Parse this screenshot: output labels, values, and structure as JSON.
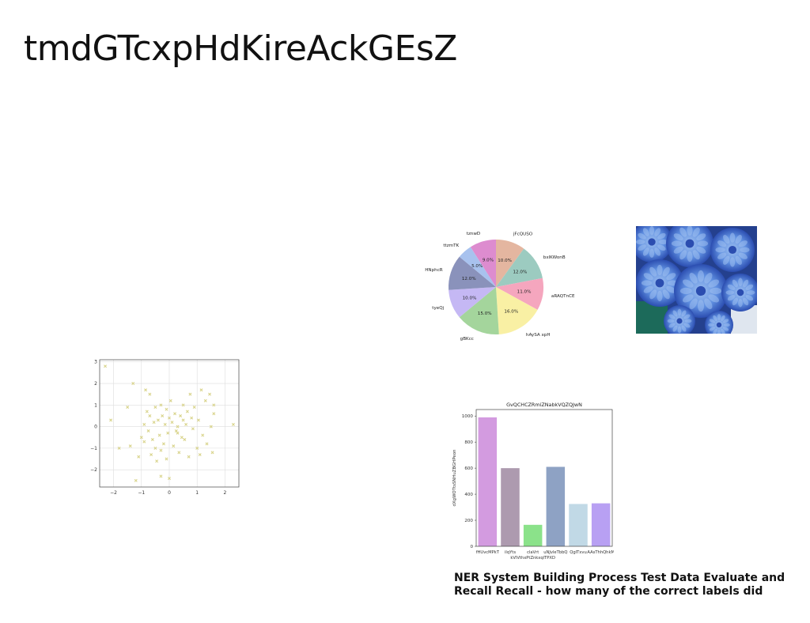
{
  "slide": {
    "title": "tmdGTcxpHdKireAckGEsZ",
    "caption": "NER System Building Process Test Data Evaluate and Recall Recall - how many of the correct labels did"
  },
  "chart_data": [
    {
      "id": "scatter",
      "type": "scatter",
      "title": "",
      "xlabel": "",
      "ylabel": "",
      "xlim": [
        -2.5,
        2.5
      ],
      "ylim": [
        -2.8,
        3.1
      ],
      "xticks": [
        -2,
        -1,
        0,
        1,
        2
      ],
      "yticks": [
        -2,
        -1,
        0,
        1,
        2,
        3
      ],
      "grid": true,
      "color": "#d9d48c",
      "marker": "x",
      "points": [
        [
          -2.3,
          2.8
        ],
        [
          -2.1,
          0.3
        ],
        [
          -1.5,
          0.9
        ],
        [
          -1.4,
          -0.9
        ],
        [
          -1.3,
          2.0
        ],
        [
          -1.2,
          -2.5
        ],
        [
          -1.1,
          -1.4
        ],
        [
          -1.0,
          -0.5
        ],
        [
          -0.9,
          -0.7
        ],
        [
          -0.85,
          1.7
        ],
        [
          -0.8,
          0.7
        ],
        [
          -0.75,
          -0.2
        ],
        [
          -0.7,
          1.5
        ],
        [
          -0.7,
          0.5
        ],
        [
          -0.65,
          -1.3
        ],
        [
          -0.6,
          -0.6
        ],
        [
          -0.55,
          0.2
        ],
        [
          -0.5,
          0.9
        ],
        [
          -0.5,
          -1.0
        ],
        [
          -0.45,
          -1.6
        ],
        [
          -0.4,
          0.3
        ],
        [
          -0.35,
          -0.4
        ],
        [
          -0.3,
          1.0
        ],
        [
          -0.3,
          -2.3
        ],
        [
          -0.25,
          0.5
        ],
        [
          -0.2,
          -0.8
        ],
        [
          -0.15,
          0.1
        ],
        [
          -0.1,
          0.8
        ],
        [
          -0.1,
          -1.5
        ],
        [
          -0.05,
          -0.3
        ],
        [
          0.0,
          0.4
        ],
        [
          0.0,
          -2.4
        ],
        [
          0.05,
          1.2
        ],
        [
          0.1,
          0.2
        ],
        [
          0.15,
          -0.9
        ],
        [
          0.2,
          0.6
        ],
        [
          0.25,
          -0.2
        ],
        [
          0.3,
          0.0
        ],
        [
          0.35,
          -1.2
        ],
        [
          0.4,
          0.5
        ],
        [
          0.45,
          -0.5
        ],
        [
          0.5,
          0.3
        ],
        [
          0.55,
          -0.6
        ],
        [
          0.6,
          0.1
        ],
        [
          0.65,
          0.7
        ],
        [
          0.7,
          -1.4
        ],
        [
          0.75,
          1.5
        ],
        [
          0.8,
          0.4
        ],
        [
          0.85,
          -0.1
        ],
        [
          0.9,
          0.9
        ],
        [
          1.0,
          -1.0
        ],
        [
          1.05,
          0.3
        ],
        [
          1.1,
          -1.3
        ],
        [
          1.15,
          1.7
        ],
        [
          1.2,
          -0.4
        ],
        [
          1.3,
          1.2
        ],
        [
          1.35,
          -0.8
        ],
        [
          1.45,
          1.5
        ],
        [
          1.5,
          0.0
        ],
        [
          1.55,
          -1.2
        ],
        [
          1.6,
          1.0
        ],
        [
          1.6,
          0.6
        ],
        [
          2.3,
          0.1
        ],
        [
          -1.8,
          -1.0
        ],
        [
          -0.3,
          -1.1
        ],
        [
          0.3,
          -0.3
        ],
        [
          0.5,
          1.0
        ],
        [
          -0.9,
          0.1
        ]
      ]
    },
    {
      "id": "pie",
      "type": "pie",
      "title": "",
      "slices": [
        {
          "label": "jFcQUSO",
          "value": 10.0,
          "pct": "10.0%",
          "color": "#e4b6a0"
        },
        {
          "label": "bxlKWonB",
          "value": 12.0,
          "pct": "12.0%",
          "color": "#9ccbc0"
        },
        {
          "label": "aRAQTnCE",
          "value": 11.0,
          "pct": "11.0%",
          "color": "#f5a6be"
        },
        {
          "label": "hAySA xpH",
          "value": 16.0,
          "pct": "16.0%",
          "color": "#f9f0a4"
        },
        {
          "label": "gBKcc",
          "value": 15.0,
          "pct": "15.0%",
          "color": "#a4d59c"
        },
        {
          "label": "tyeQj",
          "value": 10.0,
          "pct": "10.0%",
          "color": "#c5b8f4"
        },
        {
          "label": "HNphcR",
          "value": 12.0,
          "pct": "12.0%",
          "color": "#8a92bb"
        },
        {
          "label": "ttzmTK",
          "value": 5.0,
          "pct": "5.0%",
          "color": "#a8c2ee"
        },
        {
          "label": "tznwD",
          "value": 9.0,
          "pct": "9.0%",
          "color": "#dd8ccf"
        }
      ]
    },
    {
      "id": "bar",
      "type": "bar",
      "title": "GvQCHCZRmiZNabkVQZQJwN",
      "xlabel": "",
      "ylabel": "dXgWOTtsSNHuZBGHPeon",
      "ylim": [
        0,
        1050
      ],
      "yticks": [
        0,
        200,
        400,
        600,
        800,
        1000
      ],
      "categories": [
        "fHUvcMPkT",
        "ilqYts",
        "claVrt\nkVlVthxPtZnkxqlTPXD",
        "uNJvleTbbQ",
        "QgITxvu",
        "AAsThhQhkM"
      ],
      "values": [
        990,
        600,
        165,
        610,
        325,
        330
      ],
      "colors": [
        "#d39be0",
        "#ad9aaf",
        "#8be28a",
        "#8ea2c4",
        "#c1d9e6",
        "#b8a0f3"
      ]
    }
  ],
  "photo": {
    "subject": "blue dahlia flowers",
    "colors": [
      "#2b4db0",
      "#5f8fe0",
      "#9fc0f0",
      "#1c6a5a"
    ]
  }
}
